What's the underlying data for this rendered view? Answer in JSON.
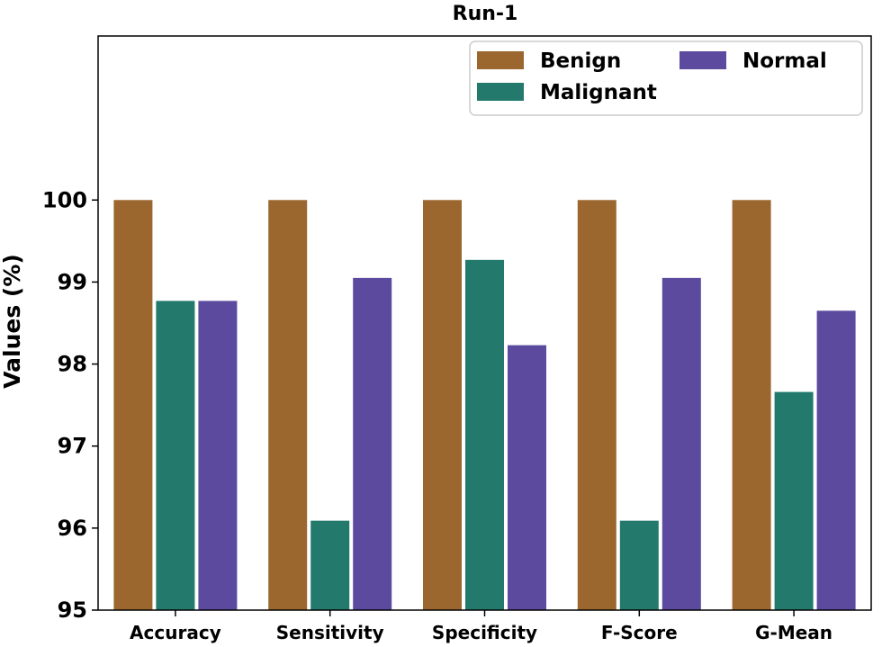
{
  "chart_data": {
    "type": "bar",
    "title": "Run-1",
    "xlabel": "",
    "ylabel": "Values (%)",
    "ylim": [
      95,
      102.0
    ],
    "yticks": [
      95,
      96,
      97,
      98,
      99,
      100
    ],
    "categories": [
      "Accuracy",
      "Sensitivity",
      "Specificity",
      "F-Score",
      "G-Mean"
    ],
    "series": [
      {
        "name": "Benign",
        "color": "#9b672f",
        "values": [
          100,
          100,
          100,
          100,
          100
        ]
      },
      {
        "name": "Malignant",
        "color": "#237a6c",
        "values": [
          98.77,
          96.09,
          99.27,
          96.09,
          97.66
        ]
      },
      {
        "name": "Normal",
        "color": "#5c4a9e",
        "values": [
          98.77,
          99.05,
          98.23,
          99.05,
          98.65
        ]
      }
    ],
    "legend_position": "top-right",
    "grid": false
  }
}
